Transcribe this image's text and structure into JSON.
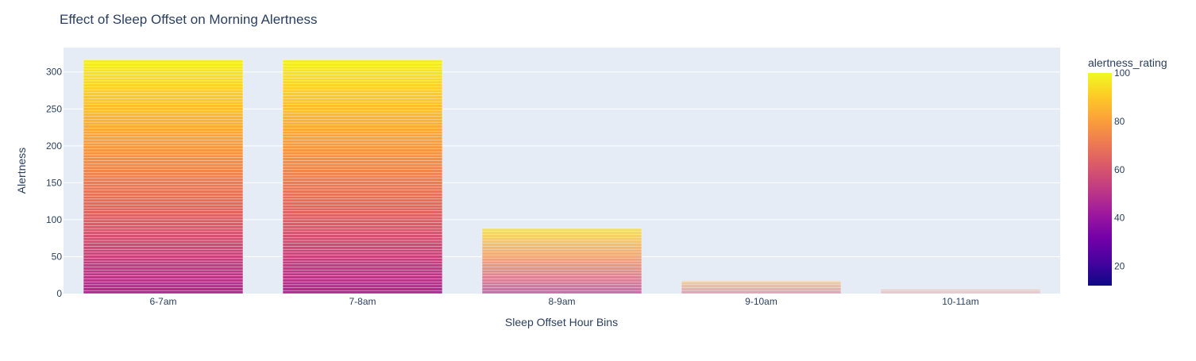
{
  "chart_data": {
    "type": "bar",
    "title": "Effect of Sleep Offset on Morning Alertness",
    "xlabel": "Sleep Offset Hour Bins",
    "ylabel": "Alertness",
    "categories": [
      "6-7am",
      "7-8am",
      "8-9am",
      "9-10am",
      "10-11am"
    ],
    "values": [
      317,
      317,
      88,
      17,
      6
    ],
    "ylim": [
      0,
      333
    ],
    "yticks": [
      0,
      50,
      100,
      150,
      200,
      250,
      300
    ],
    "grid": true,
    "colorbar": {
      "title": "alertness_rating",
      "range": [
        12,
        100
      ],
      "ticks": [
        20,
        40,
        60,
        80,
        100
      ],
      "colorscale": [
        "#0d0887",
        "#46039f",
        "#7201a8",
        "#9c179e",
        "#bd3786",
        "#d8576b",
        "#ed7953",
        "#fb9f3a",
        "#fdca26",
        "#f0f921"
      ]
    },
    "stack_notes": "Each bar is a stack of individual records colored by alertness_rating (plasma scale); dominant segment colors per bar shift from purple at the base to yellow at the top."
  }
}
